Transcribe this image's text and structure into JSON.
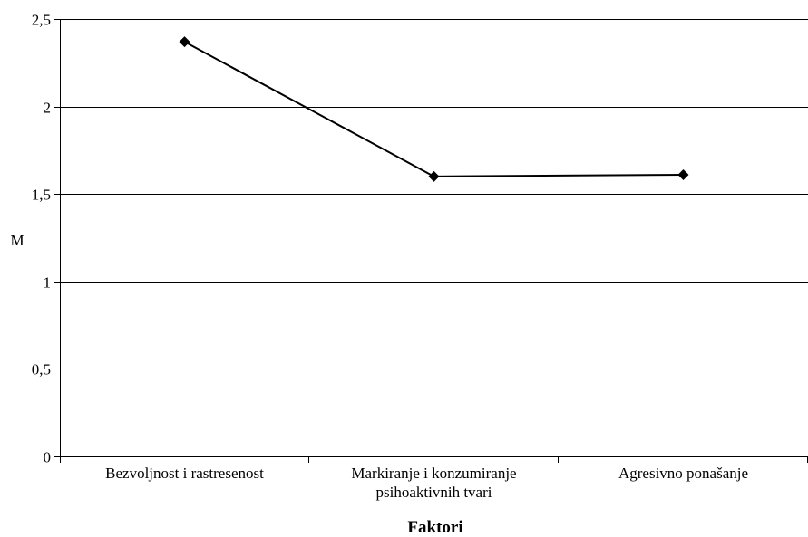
{
  "chart_data": {
    "type": "line",
    "title": "",
    "xlabel": "Faktori",
    "ylabel": "M",
    "categories": [
      [
        "Bezvoljnost i rastresenost"
      ],
      [
        "Markiranje i konzumiranje",
        "psihoaktivnih tvari"
      ],
      [
        "Agresivno ponašanje"
      ]
    ],
    "series": [
      {
        "values": [
          2.37,
          1.6,
          1.61
        ],
        "color": "#000000",
        "marker": "diamond"
      }
    ],
    "ylim": [
      0,
      2.5
    ],
    "yticks": [
      0,
      0.5,
      1,
      1.5,
      2,
      2.5
    ],
    "ytick_labels": [
      "0",
      "0,5",
      "1",
      "1,5",
      "2",
      "2,5"
    ],
    "grid": true,
    "legend": "none"
  }
}
